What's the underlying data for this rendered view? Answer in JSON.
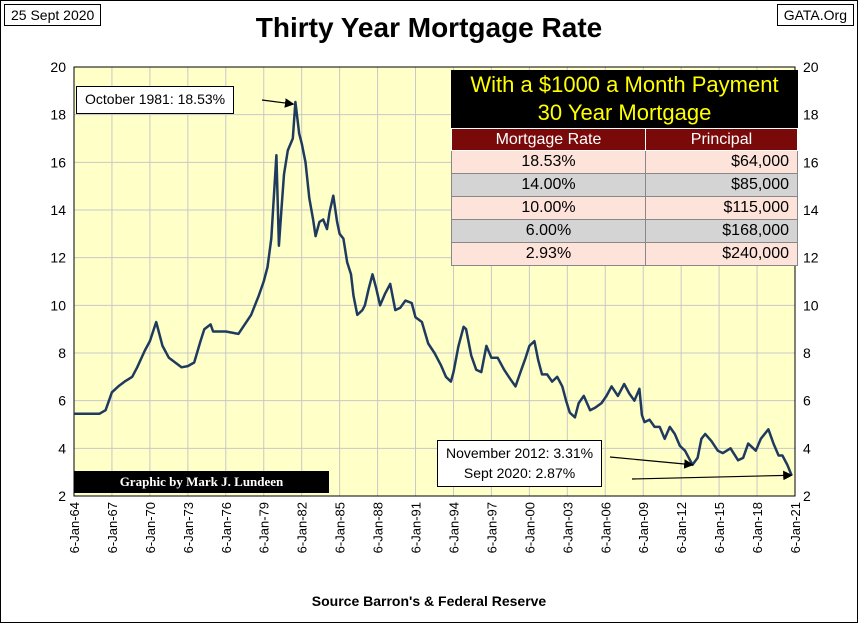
{
  "header": {
    "date_label": "25 Sept 2020",
    "brand_label": "GATA.Org",
    "title": "Thirty Year Mortgage Rate"
  },
  "footer": {
    "source": "Source Barron's & Federal Reserve",
    "credit": "Graphic by Mark J. Lundeen"
  },
  "annotations": {
    "peak": "October 1981: 18.53%",
    "nov2012": "November 2012: 3.31%",
    "sep2020": "Sept 2020: 2.87%"
  },
  "panel": {
    "title_line1": "With a $1000 a Month Payment",
    "title_line2": "30 Year Mortgage",
    "col_rate": "Mortgage Rate",
    "col_principal": "Principal",
    "rows": [
      {
        "rate": "18.53%",
        "principal": "$64,000"
      },
      {
        "rate": "14.00%",
        "principal": "$85,000"
      },
      {
        "rate": "10.00%",
        "principal": "$115,000"
      },
      {
        "rate": "6.00%",
        "principal": "$168,000"
      },
      {
        "rate": "2.93%",
        "principal": "$240,000"
      }
    ]
  },
  "colors": {
    "plot_bg": "#ffffc8",
    "line": "#1f3a5f",
    "grid": "#c8c8c8",
    "panel_head_bg": "#000000",
    "panel_head_text": "#ffff00",
    "col_header_bg": "#7a0a0a"
  },
  "chart_data": {
    "type": "line",
    "title": "Thirty Year Mortgage Rate",
    "xlabel": "",
    "ylabel": "",
    "ylim": [
      2,
      20
    ],
    "yticks": [
      2,
      4,
      6,
      8,
      10,
      12,
      14,
      16,
      18,
      20
    ],
    "xlim": [
      1964.0,
      2021.0
    ],
    "xtick_labels": [
      "6-Jan-64",
      "6-Jan-67",
      "6-Jan-70",
      "6-Jan-73",
      "6-Jan-76",
      "6-Jan-79",
      "6-Jan-82",
      "6-Jan-85",
      "6-Jan-88",
      "6-Jan-91",
      "6-Jan-94",
      "6-Jan-97",
      "6-Jan-00",
      "6-Jan-03",
      "6-Jan-06",
      "6-Jan-09",
      "6-Jan-12",
      "6-Jan-15",
      "6-Jan-18",
      "6-Jan-21"
    ],
    "grid": true,
    "right_axis": true,
    "series": [
      {
        "x": [
          1964.0,
          1966.0,
          1966.5,
          1967.0,
          1967.5,
          1968.0,
          1968.6,
          1969.0,
          1969.6,
          1970.0,
          1970.5,
          1971.0,
          1971.5,
          1972.0,
          1972.5,
          1973.0,
          1973.5,
          1974.0,
          1974.3,
          1974.8,
          1975.0,
          1976.0,
          1977.0,
          1978.0,
          1978.6,
          1979.0,
          1979.3,
          1979.6,
          1980.0,
          1980.2,
          1980.4,
          1980.6,
          1980.9,
          1981.3,
          1981.5,
          1981.8,
          1982.0,
          1982.3,
          1982.6,
          1982.9,
          1983.1,
          1983.4,
          1983.7,
          1984.0,
          1984.2,
          1984.5,
          1984.8,
          1985.0,
          1985.3,
          1985.6,
          1985.9,
          1986.1,
          1986.4,
          1986.8,
          1987.0,
          1987.3,
          1987.6,
          1987.9,
          1988.2,
          1988.6,
          1989.0,
          1989.4,
          1989.8,
          1990.2,
          1990.7,
          1991.0,
          1991.5,
          1992.0,
          1992.5,
          1993.0,
          1993.4,
          1993.8,
          1994.0,
          1994.4,
          1994.8,
          1995.0,
          1995.4,
          1995.8,
          1996.2,
          1996.6,
          1997.0,
          1997.5,
          1998.0,
          1998.5,
          1998.9,
          1999.3,
          1999.7,
          2000.0,
          2000.4,
          2000.7,
          2001.0,
          2001.4,
          2001.8,
          2002.2,
          2002.6,
          2002.9,
          2003.2,
          2003.6,
          2003.9,
          2004.3,
          2004.8,
          2005.2,
          2005.7,
          2006.1,
          2006.5,
          2007.0,
          2007.5,
          2007.9,
          2008.3,
          2008.7,
          2008.9,
          2009.1,
          2009.5,
          2009.9,
          2010.3,
          2010.7,
          2011.1,
          2011.5,
          2011.9,
          2012.3,
          2012.9,
          2013.3,
          2013.6,
          2013.9,
          2014.4,
          2014.9,
          2015.3,
          2015.9,
          2016.5,
          2016.9,
          2017.3,
          2017.9,
          2018.3,
          2018.9,
          2019.3,
          2019.7,
          2020.0,
          2020.4,
          2020.73
        ],
        "y": [
          5.45,
          5.45,
          5.6,
          6.35,
          6.6,
          6.8,
          7.0,
          7.4,
          8.1,
          8.5,
          9.3,
          8.3,
          7.8,
          7.6,
          7.4,
          7.45,
          7.6,
          8.5,
          9.0,
          9.2,
          8.9,
          8.9,
          8.8,
          9.6,
          10.4,
          11.0,
          11.6,
          12.8,
          16.3,
          12.5,
          14.0,
          15.5,
          16.5,
          17.0,
          18.53,
          17.2,
          16.8,
          16.0,
          14.5,
          13.6,
          12.9,
          13.5,
          13.6,
          13.2,
          13.9,
          14.6,
          13.5,
          13.0,
          12.8,
          11.8,
          11.3,
          10.4,
          9.6,
          9.8,
          10.0,
          10.7,
          11.3,
          10.7,
          10.0,
          10.5,
          10.9,
          9.8,
          9.9,
          10.2,
          10.1,
          9.5,
          9.3,
          8.4,
          8.0,
          7.5,
          7.0,
          6.8,
          7.2,
          8.3,
          9.1,
          9.0,
          7.9,
          7.3,
          7.2,
          8.3,
          7.8,
          7.8,
          7.3,
          6.9,
          6.6,
          7.2,
          7.8,
          8.3,
          8.5,
          7.7,
          7.1,
          7.1,
          6.8,
          7.0,
          6.6,
          6.0,
          5.5,
          5.3,
          5.9,
          6.2,
          5.6,
          5.7,
          5.9,
          6.2,
          6.6,
          6.2,
          6.7,
          6.3,
          6.0,
          6.5,
          5.4,
          5.1,
          5.2,
          4.9,
          4.9,
          4.4,
          4.9,
          4.6,
          4.1,
          3.9,
          3.31,
          3.6,
          4.4,
          4.6,
          4.3,
          3.9,
          3.8,
          4.0,
          3.5,
          3.6,
          4.2,
          3.9,
          4.4,
          4.8,
          4.2,
          3.7,
          3.7,
          3.3,
          2.87
        ]
      }
    ]
  }
}
